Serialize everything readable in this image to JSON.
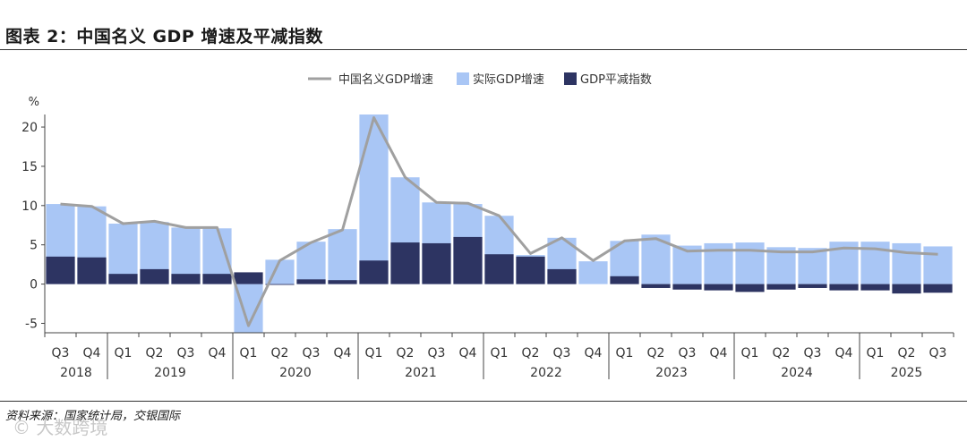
{
  "figure": {
    "title": "图表 2：中国名义 GDP 增速及平减指数",
    "source": "资料来源：国家统计局，交银国际",
    "watermark": "© 大数跨境"
  },
  "chart_data": {
    "type": "bar",
    "stacked_bars_with_line": true,
    "y_unit": "%",
    "ylim": [
      -6.2,
      21.6
    ],
    "yticks": [
      -5,
      0,
      5,
      10,
      15,
      20
    ],
    "quarters": [
      "Q3",
      "Q4",
      "Q1",
      "Q2",
      "Q3",
      "Q4",
      "Q1",
      "Q2",
      "Q3",
      "Q4",
      "Q1",
      "Q2",
      "Q3",
      "Q4",
      "Q1",
      "Q2",
      "Q3",
      "Q4",
      "Q1",
      "Q2",
      "Q3",
      "Q4",
      "Q1",
      "Q2",
      "Q3",
      "Q4",
      "Q1",
      "Q2",
      "Q3"
    ],
    "years": [
      {
        "label": "2018",
        "start": 0,
        "end": 1
      },
      {
        "label": "2019",
        "start": 2,
        "end": 5
      },
      {
        "label": "2020",
        "start": 6,
        "end": 9
      },
      {
        "label": "2021",
        "start": 10,
        "end": 13
      },
      {
        "label": "2022",
        "start": 14,
        "end": 17
      },
      {
        "label": "2023",
        "start": 18,
        "end": 21
      },
      {
        "label": "2024",
        "start": 22,
        "end": 25
      },
      {
        "label": "2025",
        "start": 26,
        "end": 28
      }
    ],
    "series": [
      {
        "name": "实际GDP增速",
        "kind": "bar",
        "color": "#a9c6f5",
        "values": [
          10.2,
          9.9,
          7.7,
          7.9,
          7.2,
          7.1,
          -6.2,
          3.1,
          5.4,
          7.0,
          21.6,
          13.6,
          10.4,
          10.2,
          8.7,
          3.7,
          5.9,
          2.9,
          5.5,
          6.3,
          4.9,
          5.2,
          5.3,
          4.7,
          4.6,
          5.4,
          5.4,
          5.2,
          4.8
        ]
      },
      {
        "name": "GDP平减指数",
        "kind": "bar",
        "color": "#2d3462",
        "values": [
          3.5,
          3.4,
          1.3,
          1.9,
          1.3,
          1.3,
          1.5,
          -0.1,
          0.6,
          0.5,
          3.0,
          5.3,
          5.2,
          6.0,
          3.8,
          3.5,
          1.9,
          0.0,
          1.0,
          -0.5,
          -0.7,
          -0.8,
          -1.0,
          -0.7,
          -0.5,
          -0.8,
          -0.8,
          -1.2,
          -1.1
        ]
      },
      {
        "name": "中国名义GDP增速",
        "kind": "line",
        "color": "#a0a0a0",
        "values": [
          10.2,
          9.9,
          7.7,
          8.0,
          7.2,
          7.2,
          -5.3,
          3.0,
          5.3,
          6.9,
          21.2,
          13.6,
          10.4,
          10.3,
          8.7,
          3.9,
          5.9,
          3.0,
          5.5,
          5.8,
          4.2,
          4.3,
          4.3,
          4.1,
          4.1,
          4.6,
          4.5,
          4.0,
          3.8
        ]
      }
    ],
    "legend_position": "top-center",
    "grid": false
  },
  "colors": {
    "bar_real": "#a9c6f5",
    "bar_deflator": "#2d3462",
    "line_nominal": "#a0a0a0",
    "axis": "#444444"
  }
}
